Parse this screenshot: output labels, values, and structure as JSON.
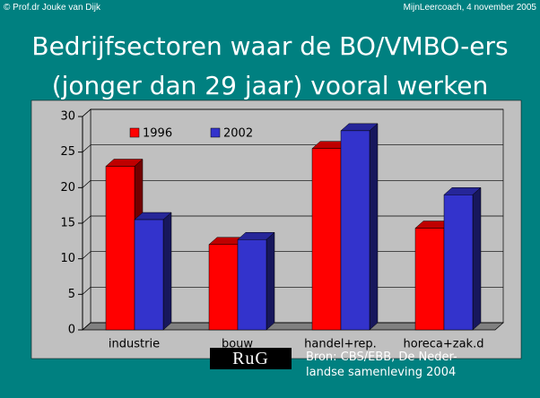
{
  "header": {
    "left": "© Prof.dr Jouke van Dijk",
    "right": "MijnLeercoach, 4 november 2005"
  },
  "title": [
    "Bedrijfsectoren waar de BO/VMBO-ers",
    "(jonger dan 29 jaar) vooral werken"
  ],
  "chart_data": {
    "type": "bar3d",
    "categories": [
      "industrie",
      "bouw",
      "handel+rep.",
      "horeca+zak.d"
    ],
    "series": [
      {
        "name": "1996",
        "color": "#ff0000",
        "values": [
          23,
          12,
          25.5,
          14.3
        ]
      },
      {
        "name": "2002",
        "color": "#3333cc",
        "values": [
          15.5,
          12.7,
          28,
          19
        ]
      }
    ],
    "ylim": [
      0,
      30
    ],
    "yticks": [
      0,
      5,
      10,
      15,
      20,
      25,
      30
    ],
    "grid": true,
    "legend": "top-left"
  },
  "footer": {
    "logo": "RuG",
    "source": [
      "Bron: CBS/EBB, De Neder-",
      "landse samenleving 2004"
    ]
  }
}
